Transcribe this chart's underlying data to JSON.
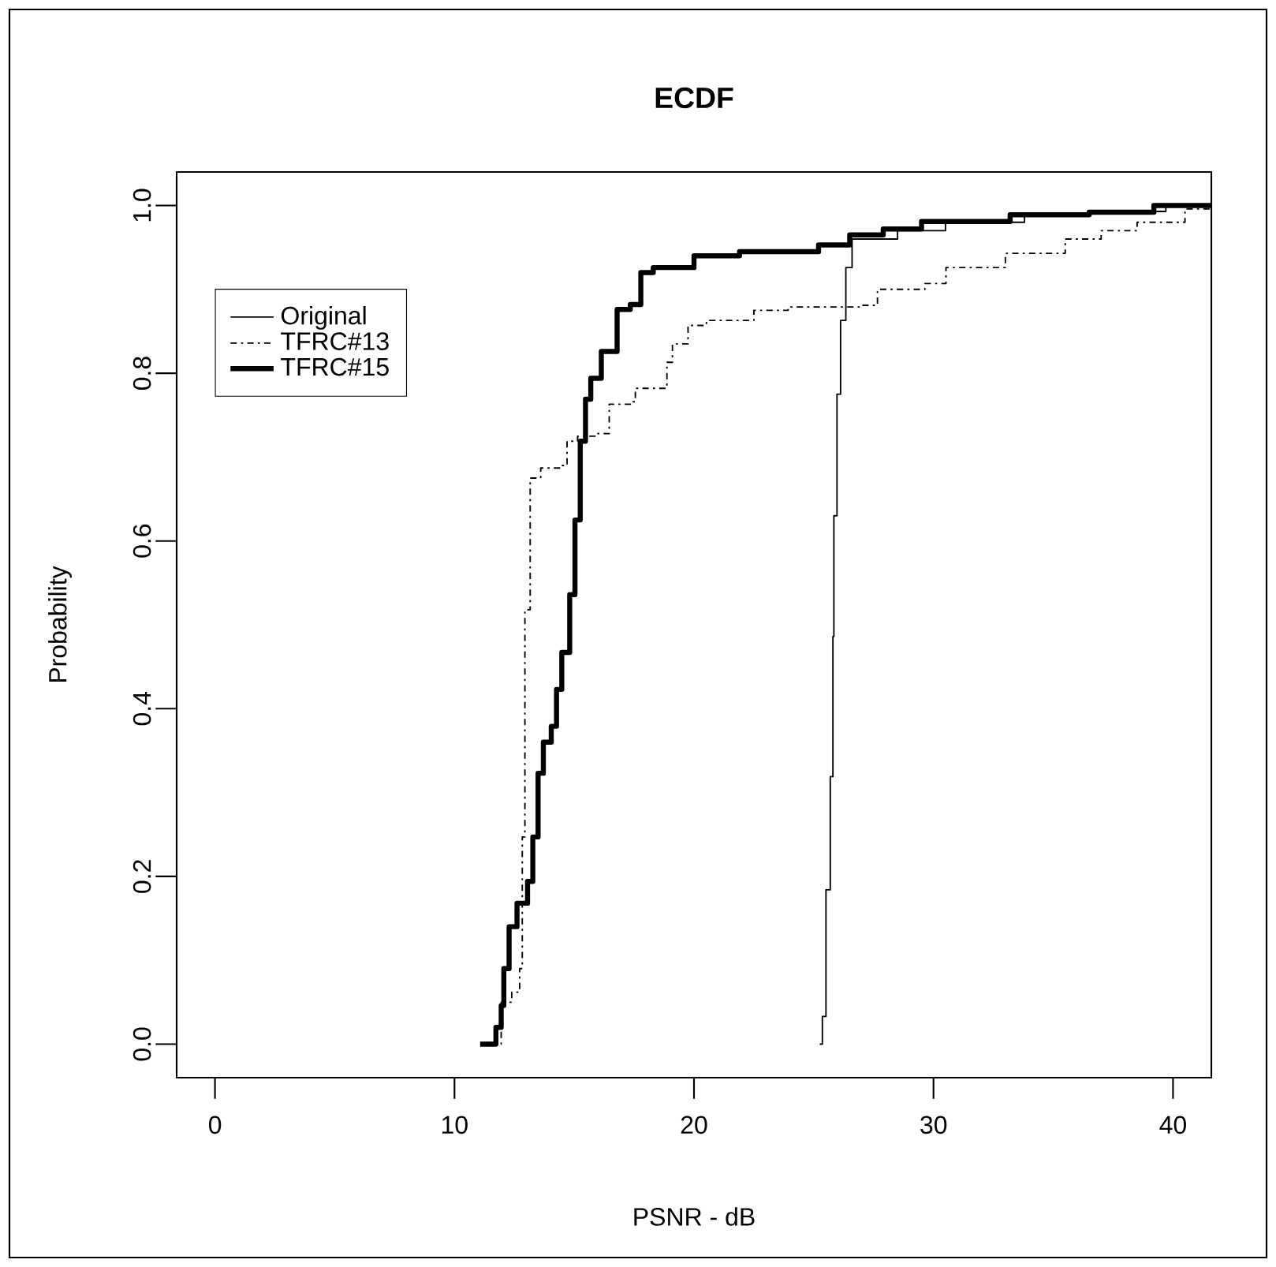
{
  "chart_data": {
    "type": "step",
    "title": "ECDF",
    "xlabel": "PSNR - dB",
    "ylabel": "Probability",
    "xlim": [
      -1.6,
      41.6
    ],
    "ylim": [
      -0.04,
      1.04
    ],
    "xticks": [
      0,
      10,
      20,
      30,
      40
    ],
    "yticks": [
      {
        "value": 0,
        "label": "0.0"
      },
      0.2,
      0.4,
      0.6,
      0.8,
      {
        "value": 1,
        "label": "1.0"
      }
    ],
    "legend": "top left",
    "grid": false,
    "series": [
      {
        "name": "Original",
        "color": "#000000",
        "line_style": "solid",
        "x": [
          25.25,
          25.36,
          25.51,
          25.69,
          25.8,
          25.84,
          25.97,
          26.12,
          26.34,
          26.6,
          28.5,
          30.5,
          33.8,
          36.5,
          39.7,
          41.6
        ],
        "values": [
          0,
          0.033,
          0.184,
          0.319,
          0.486,
          0.63,
          0.775,
          0.863,
          0.926,
          0.96,
          0.97,
          0.98,
          0.99,
          0.993,
          1,
          1
        ]
      },
      {
        "name": "TFRC#13",
        "color": "#000000",
        "line_style": "dashdot",
        "x": [
          11.5,
          11.95,
          12.39,
          12.72,
          12.83,
          12.94,
          13.16,
          13.6,
          14.48,
          14.7,
          15.14,
          15.9,
          16.46,
          17.45,
          17.55,
          18.43,
          18.87,
          19.1,
          19.75,
          20.52,
          21.95,
          22.5,
          23.93,
          26.12,
          27.0,
          27.66,
          29.64,
          30.52,
          33.0,
          35.5,
          37.0,
          38.5,
          40.5,
          41.6
        ],
        "values": [
          0,
          0.05,
          0.062,
          0.09,
          0.247,
          0.518,
          0.675,
          0.687,
          0.69,
          0.719,
          0.725,
          0.728,
          0.763,
          0.766,
          0.782,
          0.782,
          0.813,
          0.835,
          0.857,
          0.863,
          0.863,
          0.875,
          0.879,
          0.879,
          0.881,
          0.9,
          0.907,
          0.926,
          0.943,
          0.96,
          0.97,
          0.98,
          0.996,
          1
        ]
      },
      {
        "name": "TFRC#15",
        "color": "#000000",
        "line_style": "solid",
        "x": [
          11.07,
          11.73,
          11.95,
          12.06,
          12.28,
          12.61,
          13.05,
          13.27,
          13.49,
          13.71,
          14.04,
          14.26,
          14.48,
          14.81,
          15.03,
          15.25,
          15.47,
          15.69,
          16.13,
          16.79,
          17.34,
          17.78,
          18.3,
          20.0,
          21.9,
          25.2,
          26.5,
          27.9,
          29.5,
          33.2,
          36.5,
          39.2,
          41.6
        ],
        "values": [
          0,
          0.02,
          0.046,
          0.09,
          0.14,
          0.168,
          0.194,
          0.247,
          0.323,
          0.36,
          0.379,
          0.423,
          0.467,
          0.536,
          0.625,
          0.719,
          0.769,
          0.794,
          0.826,
          0.876,
          0.882,
          0.92,
          0.926,
          0.94,
          0.945,
          0.953,
          0.965,
          0.972,
          0.981,
          0.989,
          0.992,
          1,
          1
        ]
      }
    ]
  }
}
